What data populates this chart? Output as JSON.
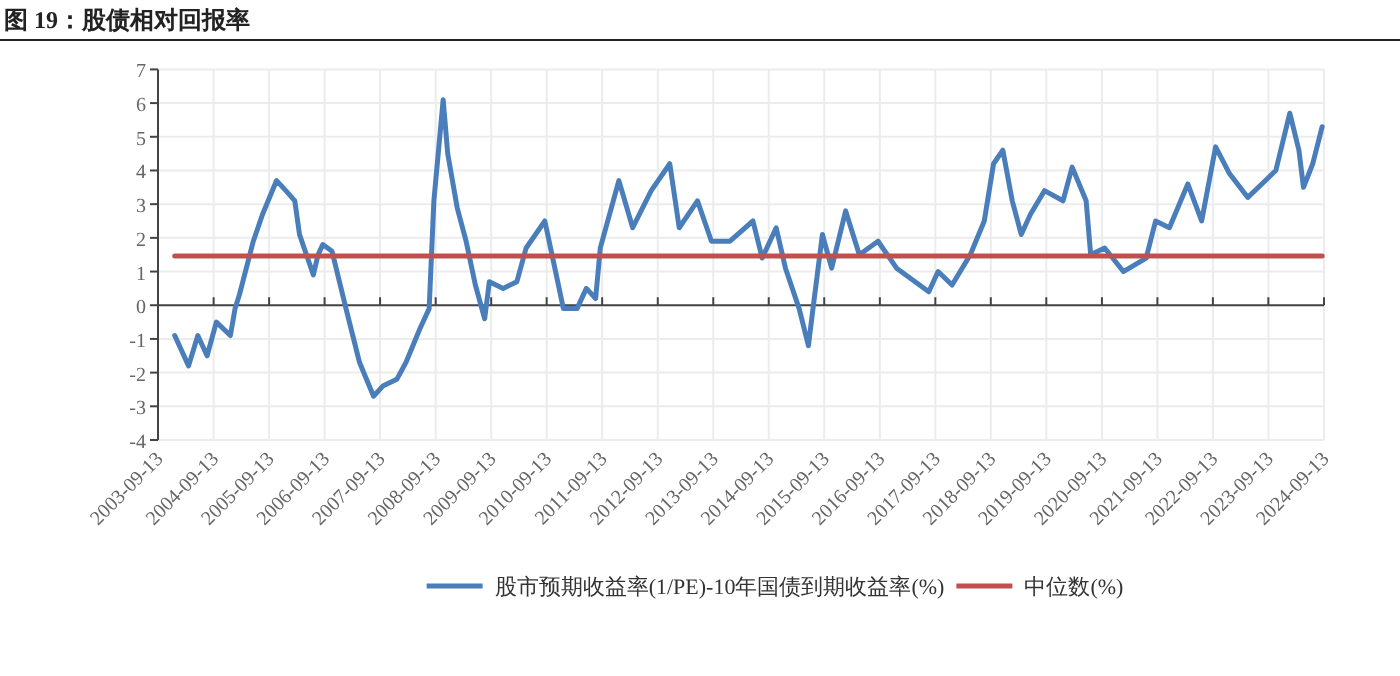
{
  "chart_data": {
    "type": "line",
    "title": "图 19：股债相对回报率",
    "x": [
      "2004-01",
      "2004-04",
      "2004-06",
      "2004-08",
      "2004-10",
      "2005-01",
      "2005-02",
      "2005-03",
      "2005-06",
      "2005-08",
      "2005-11",
      "2006-01",
      "2006-03",
      "2006-04",
      "2006-07",
      "2006-08",
      "2006-09",
      "2006-11",
      "2007-02",
      "2007-05",
      "2007-08",
      "2007-10",
      "2008-01",
      "2008-03",
      "2008-06",
      "2008-08",
      "2008-09",
      "2008-11",
      "2008-12",
      "2009-02",
      "2009-04",
      "2009-06",
      "2009-08",
      "2009-09",
      "2009-12",
      "2010-03",
      "2010-05",
      "2010-09",
      "2010-11",
      "2011-01",
      "2011-04",
      "2011-06",
      "2011-08",
      "2011-09",
      "2012-01",
      "2012-04",
      "2012-08",
      "2012-12",
      "2013-02",
      "2013-06",
      "2013-09",
      "2014-01",
      "2014-06",
      "2014-08",
      "2014-11",
      "2015-01",
      "2015-04",
      "2015-06",
      "2015-07",
      "2015-09",
      "2015-11",
      "2016-02",
      "2016-05",
      "2016-09",
      "2017-01",
      "2017-08",
      "2017-10",
      "2018-01",
      "2018-05",
      "2018-08",
      "2018-10",
      "2018-12",
      "2019-02",
      "2019-04",
      "2019-06",
      "2019-09",
      "2020-01",
      "2020-03",
      "2020-06",
      "2020-07",
      "2020-10",
      "2021-02",
      "2021-07",
      "2021-09",
      "2021-12",
      "2022-04",
      "2022-07",
      "2022-10",
      "2023-01",
      "2023-05",
      "2023-08",
      "2023-11",
      "2024-02",
      "2024-04",
      "2024-05",
      "2024-07",
      "2024-09"
    ],
    "series": [
      {
        "name": "股市预期收益率(1/PE)-10年国债到期收益率(%)",
        "color": "#4a7ebb",
        "values": [
          -0.9,
          -1.8,
          -0.9,
          -1.5,
          -0.5,
          -0.9,
          -0.1,
          0.3,
          1.9,
          2.7,
          3.7,
          3.4,
          3.1,
          2.1,
          0.9,
          1.5,
          1.8,
          1.6,
          -0.1,
          -1.7,
          -2.7,
          -2.4,
          -2.2,
          -1.7,
          -0.7,
          -0.1,
          3.1,
          6.1,
          4.5,
          2.9,
          1.9,
          0.6,
          -0.4,
          0.7,
          0.5,
          0.7,
          1.7,
          2.5,
          1.2,
          -0.1,
          -0.1,
          0.5,
          0.2,
          1.7,
          3.7,
          2.3,
          3.4,
          4.2,
          2.3,
          3.1,
          1.9,
          1.9,
          2.5,
          1.4,
          2.3,
          1.1,
          -0.1,
          -1.2,
          -0.1,
          2.1,
          1.1,
          2.8,
          1.5,
          1.9,
          1.1,
          0.4,
          1.0,
          0.6,
          1.5,
          2.5,
          4.2,
          4.6,
          3.1,
          2.1,
          2.7,
          3.4,
          3.1,
          4.1,
          3.1,
          1.5,
          1.7,
          1.0,
          1.4,
          2.5,
          2.3,
          3.6,
          2.5,
          4.7,
          3.9,
          3.2,
          3.6,
          4.0,
          5.7,
          4.6,
          3.5,
          4.2,
          5.3
        ]
      },
      {
        "name": "中位数(%)",
        "color": "#c0504d",
        "x": [
          "2004-01",
          "2024-09"
        ],
        "values": [
          1.46,
          1.46
        ]
      }
    ],
    "xlim": [
      "2003-09-13",
      "2024-09-13"
    ],
    "xticks": [
      "2003-09-13",
      "2004-09-13",
      "2005-09-13",
      "2006-09-13",
      "2007-09-13",
      "2008-09-13",
      "2009-09-13",
      "2010-09-13",
      "2011-09-13",
      "2012-09-13",
      "2013-09-13",
      "2014-09-13",
      "2015-09-13",
      "2016-09-13",
      "2017-09-13",
      "2018-09-13",
      "2019-09-13",
      "2020-09-13",
      "2021-09-13",
      "2022-09-13",
      "2023-09-13",
      "2024-09-13"
    ],
    "ylim": [
      -4,
      7
    ],
    "yticks": [
      -4,
      -3,
      -2,
      -1,
      0,
      1,
      2,
      3,
      4,
      5,
      6,
      7
    ],
    "grid": true,
    "legend": "bottom"
  }
}
